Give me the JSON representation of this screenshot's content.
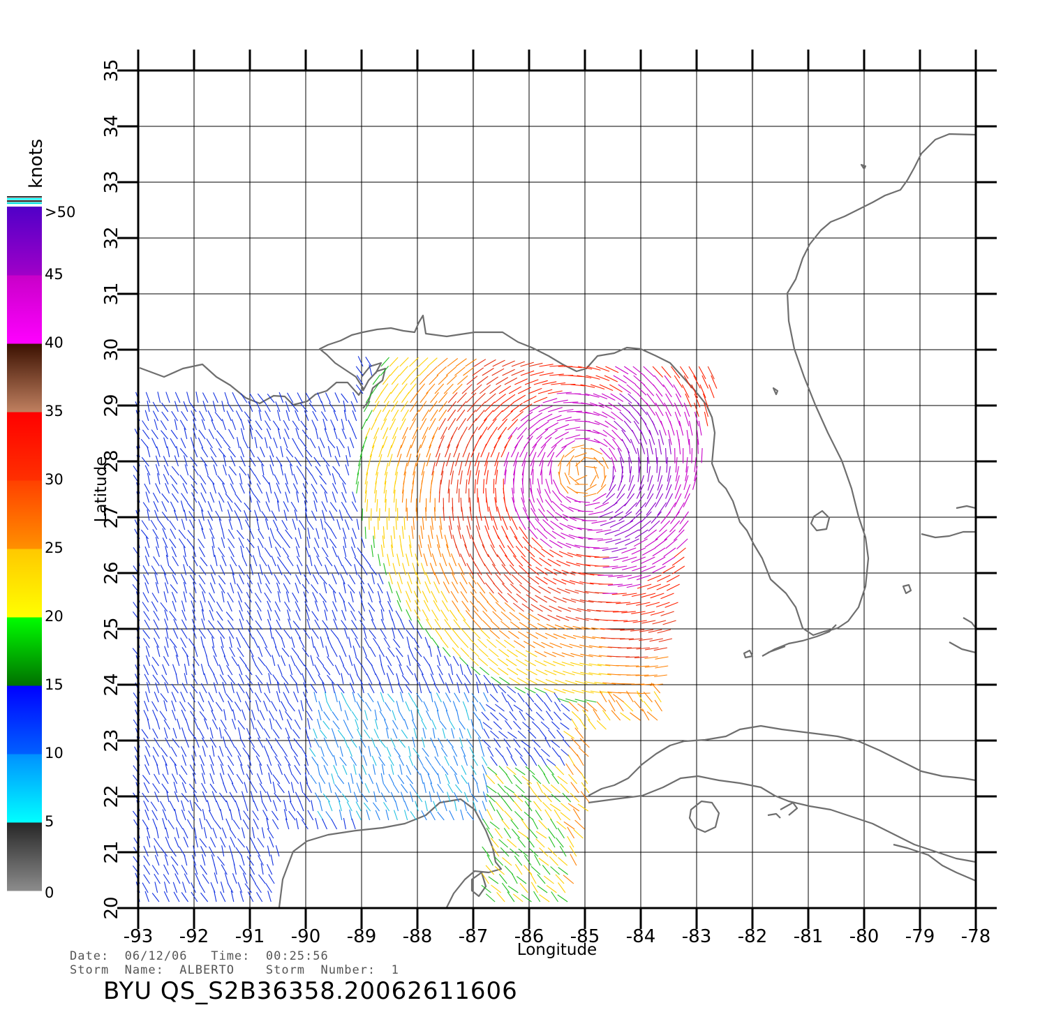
{
  "legend": {
    "unit_label": "knots",
    "tick_labels": [
      ">50",
      "45",
      "40",
      "35",
      "30",
      "25",
      "20",
      "15",
      "10",
      "5",
      "0"
    ],
    "bands": [
      {
        "from": 0,
        "to": 5,
        "top_color": "#262626",
        "bottom_color": "#8c8c8c"
      },
      {
        "from": 5,
        "to": 10,
        "top_color": "#0090ff",
        "bottom_color": "#00ffff"
      },
      {
        "from": 10,
        "to": 15,
        "top_color": "#0000ff",
        "bottom_color": "#0060ff"
      },
      {
        "from": 15,
        "to": 20,
        "top_color": "#00ff00",
        "bottom_color": "#007000"
      },
      {
        "from": 20,
        "to": 25,
        "top_color": "#ffc800",
        "bottom_color": "#ffff00"
      },
      {
        "from": 25,
        "to": 30,
        "top_color": "#ff4000",
        "bottom_color": "#ff9000"
      },
      {
        "from": 30,
        "to": 35,
        "top_color": "#ff0000",
        "bottom_color": "#ff3000"
      },
      {
        "from": 35,
        "to": 40,
        "top_color": "#3a1000",
        "bottom_color": "#c08060"
      },
      {
        "from": 40,
        "to": 45,
        "top_color": "#c800c8",
        "bottom_color": "#ff00ff"
      },
      {
        "from": 45,
        "to": 50,
        "top_color": "#5000c8",
        "bottom_color": "#a000c8"
      }
    ]
  },
  "axes": {
    "xlabel": "Longitude",
    "ylabel": "Latitude",
    "x_ticks": [
      "-93",
      "-92",
      "-91",
      "-90",
      "-89",
      "-88",
      "-87",
      "-86",
      "-85",
      "-84",
      "-83",
      "-82",
      "-81",
      "-80",
      "-79",
      "-78"
    ],
    "y_ticks": [
      "20",
      "21",
      "22",
      "23",
      "24",
      "25",
      "26",
      "27",
      "28",
      "29",
      "30",
      "31",
      "32",
      "33",
      "34",
      "35"
    ],
    "xlim": [
      -93,
      -78
    ],
    "ylim": [
      20,
      35
    ],
    "grid": true
  },
  "storm": {
    "center_lon": -85.0,
    "center_lat": 27.8,
    "swath_east_edge_lon": -83.0
  },
  "info": {
    "date_line": "Date:  06/12/06   Time:  00:25:56",
    "storm_line": "Storm  Name:  ALBERTO    Storm  Number:  1",
    "id_line": "BYU  QS_S2B36358.20062611606"
  }
}
